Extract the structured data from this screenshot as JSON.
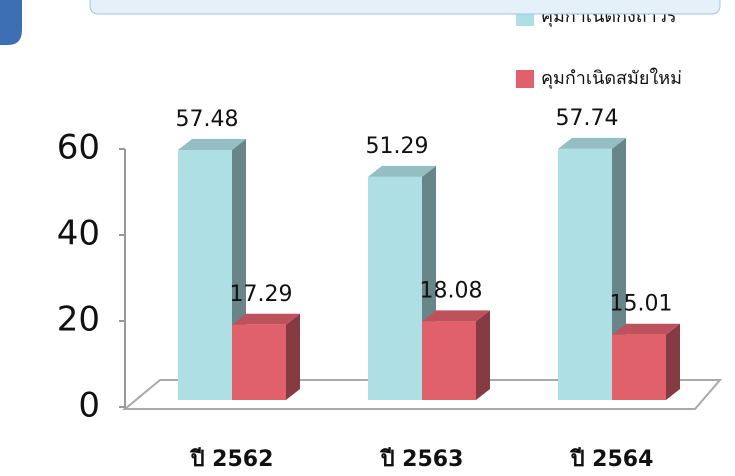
{
  "chart_data": {
    "type": "bar3d",
    "categories": [
      "ปี 2562",
      "ปี 2563",
      "ปี 2564"
    ],
    "series": [
      {
        "name": "คุมกำเนิดกึ่งถาวร",
        "color": "#aedfe5",
        "values": [
          57.48,
          51.29,
          57.74
        ]
      },
      {
        "name": "คุมกำเนิดสมัยใหม่",
        "color": "#e0606c",
        "values": [
          17.29,
          18.08,
          15.01
        ]
      }
    ],
    "ylim": [
      0,
      60
    ],
    "yticks": [
      0,
      20,
      40,
      60
    ]
  }
}
